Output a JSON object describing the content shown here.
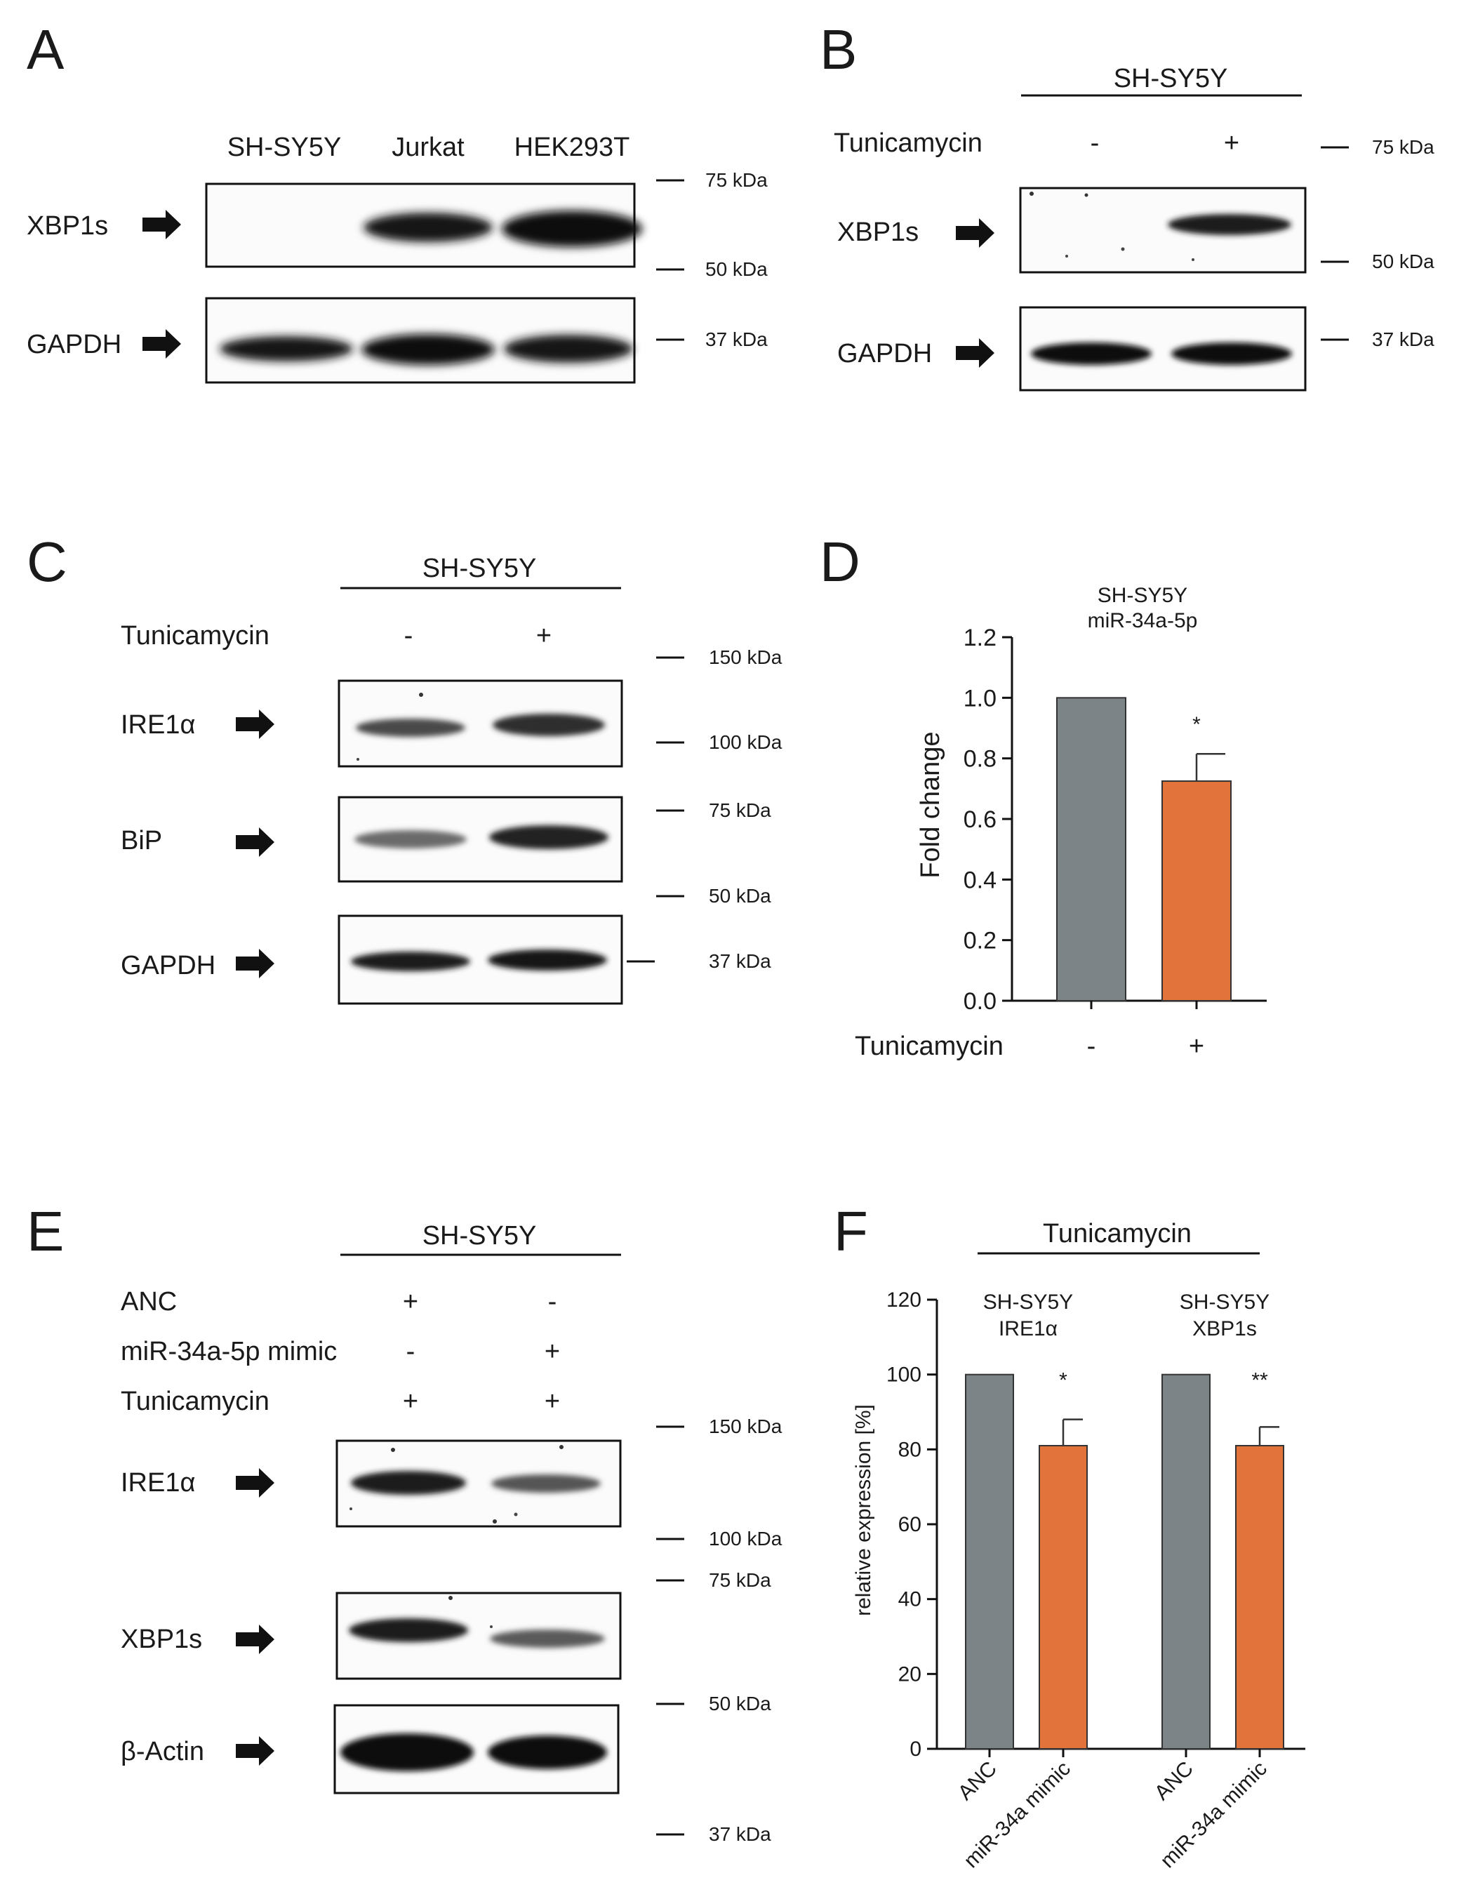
{
  "panels": {
    "A": {
      "letter": "A",
      "cell_lines": [
        "SH-SY5Y",
        "Jurkat",
        "HEK293T"
      ],
      "rows": [
        "XBP1s",
        "GAPDH"
      ],
      "markers": [
        "75 kDa",
        "50 kDa",
        "37 kDa"
      ]
    },
    "B": {
      "letter": "B",
      "header": "SH-SY5Y",
      "treatment": "Tunicamycin",
      "conditions": [
        "-",
        "+"
      ],
      "rows": [
        "XBP1s",
        "GAPDH"
      ],
      "markers": [
        "75 kDa",
        "50 kDa",
        "37 kDa"
      ]
    },
    "C": {
      "letter": "C",
      "header": "SH-SY5Y",
      "treatment": "Tunicamycin",
      "conditions": [
        "-",
        "+"
      ],
      "rows": [
        "IRE1α",
        "BiP",
        "GAPDH"
      ],
      "markers": [
        "150 kDa",
        "100 kDa",
        "75 kDa",
        "50 kDa",
        "37 kDa"
      ]
    },
    "D": {
      "letter": "D",
      "title_line1": "SH-SY5Y",
      "title_line2": "miR-34a-5p",
      "ylabel": "Fold change",
      "xlabel": "Tunicamycin",
      "yticks": [
        "0.0",
        "0.2",
        "0.4",
        "0.6",
        "0.8",
        "1.0",
        "1.2"
      ],
      "conditions": [
        "-",
        "+"
      ],
      "significance": "*"
    },
    "E": {
      "letter": "E",
      "header": "SH-SY5Y",
      "treatments": [
        "ANC",
        "miR-34a-5p mimic",
        "Tunicamycin"
      ],
      "signs": [
        [
          "+",
          "-"
        ],
        [
          "-",
          "+"
        ],
        [
          "+",
          "+"
        ]
      ],
      "rows": [
        "IRE1α",
        "XBP1s",
        "β-Actin"
      ],
      "markers": [
        "150 kDa",
        "100 kDa",
        "75 kDa",
        "50 kDa",
        "37 kDa"
      ]
    },
    "F": {
      "letter": "F",
      "header": "Tunicamycin",
      "ylabel": "relative expression [%]",
      "yticks": [
        "0",
        "20",
        "40",
        "60",
        "80",
        "100",
        "120"
      ],
      "groups": [
        {
          "line1": "SH-SY5Y",
          "line2": "IRE1α",
          "significance": "*"
        },
        {
          "line1": "SH-SY5Y",
          "line2": "XBP1s",
          "significance": "**"
        }
      ],
      "xcats": [
        "ANC",
        "miR-34a mimic",
        "ANC",
        "miR-34a mimic"
      ]
    }
  },
  "colors": {
    "control": "#7c8487",
    "treated": "#e2733a",
    "ink": "#111111"
  },
  "chart_data": [
    {
      "type": "bar",
      "title": "SH-SY5Y miR-34a-5p",
      "xlabel": "Tunicamycin",
      "ylabel": "Fold change",
      "categories": [
        "-",
        "+"
      ],
      "values": [
        1.0,
        0.725
      ],
      "errors": [
        0,
        0.09
      ],
      "ylim": [
        0,
        1.2
      ],
      "colors": [
        "#7c8487",
        "#e2733a"
      ],
      "annotations": [
        "",
        "*"
      ]
    },
    {
      "type": "bar",
      "title": "Tunicamycin",
      "ylabel": "relative expression [%]",
      "categories": [
        "ANC",
        "miR-34a mimic",
        "ANC",
        "miR-34a mimic"
      ],
      "groups": [
        "SH-SY5Y IRE1α",
        "SH-SY5Y XBP1s"
      ],
      "values": [
        100,
        81,
        100,
        81
      ],
      "errors": [
        0,
        7,
        0,
        5
      ],
      "ylim": [
        0,
        120
      ],
      "colors": [
        "#7c8487",
        "#e2733a",
        "#7c8487",
        "#e2733a"
      ],
      "annotations": [
        "",
        "*",
        "",
        "**"
      ]
    }
  ]
}
